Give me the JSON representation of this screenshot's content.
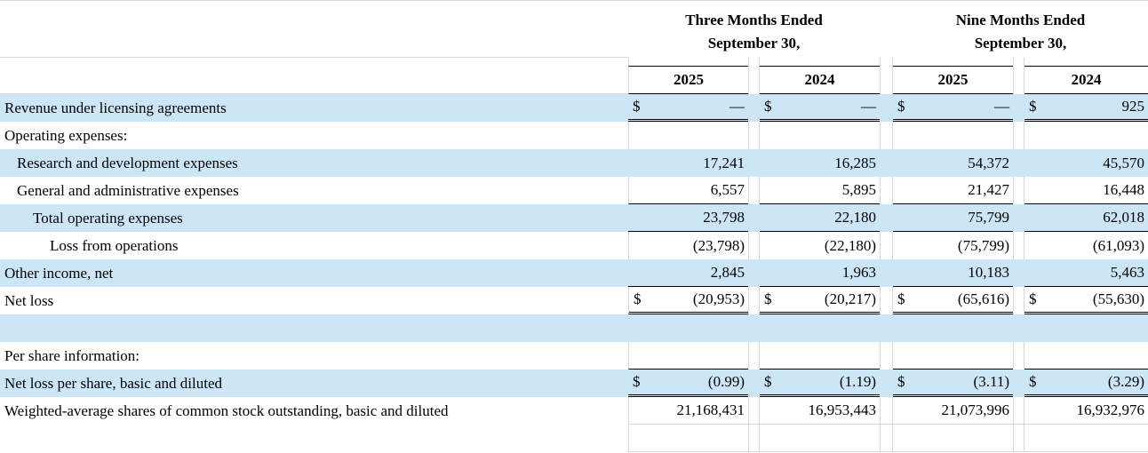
{
  "colors": {
    "stripe_blue": "#cce6f8",
    "gridline": "#d8d8d8",
    "rule_black": "#000000",
    "background": "#ffffff",
    "text": "#000000"
  },
  "table": {
    "currency_symbol": "$",
    "column_groups": [
      {
        "line1": "Three Months Ended",
        "line2": "September 30,",
        "years": [
          "2025",
          "2024"
        ]
      },
      {
        "line1": "Nine Months Ended",
        "line2": "September 30,",
        "years": [
          "2025",
          "2024"
        ]
      }
    ],
    "rows": [
      {
        "label": "Revenue under licensing agreements",
        "indent": 0,
        "bg": "blue",
        "dollar": true,
        "values": [
          "—",
          "—",
          "—",
          "925"
        ],
        "bottom_border": "double"
      },
      {
        "label": "Operating expenses:",
        "indent": 0,
        "bg": "white",
        "dollar": false,
        "values": null,
        "bottom_border": "none"
      },
      {
        "label": "Research and development expenses",
        "indent": 1,
        "bg": "blue",
        "dollar": false,
        "values": [
          "17,241",
          "16,285",
          "54,372",
          "45,570"
        ],
        "bottom_border": "none"
      },
      {
        "label": "General and administrative expenses",
        "indent": 1,
        "bg": "white",
        "dollar": false,
        "values": [
          "6,557",
          "5,895",
          "21,427",
          "16,448"
        ],
        "bottom_border": "single"
      },
      {
        "label": "Total operating expenses",
        "indent": 2,
        "bg": "blue",
        "dollar": false,
        "values": [
          "23,798",
          "22,180",
          "75,799",
          "62,018"
        ],
        "bottom_border": "single"
      },
      {
        "label": "Loss from operations",
        "indent": 3,
        "bg": "white",
        "dollar": false,
        "values": [
          "(23,798)",
          "(22,180)",
          "(75,799)",
          "(61,093)"
        ],
        "bottom_border": "none"
      },
      {
        "label": "Other income, net",
        "indent": 0,
        "bg": "blue",
        "dollar": false,
        "values": [
          "2,845",
          "1,963",
          "10,183",
          "5,463"
        ],
        "bottom_border": "single"
      },
      {
        "label": "Net loss",
        "indent": 0,
        "bg": "white",
        "dollar": true,
        "values": [
          "(20,953)",
          "(20,217)",
          "(65,616)",
          "(55,630)"
        ],
        "bottom_border": "double"
      },
      {
        "label": "",
        "indent": 0,
        "bg": "blue",
        "dollar": false,
        "values": null,
        "bottom_border": "none"
      },
      {
        "label": "Per share information:",
        "indent": 0,
        "bg": "white",
        "dollar": false,
        "values": null,
        "bottom_border": "single"
      },
      {
        "label": "Net loss per share, basic and diluted",
        "indent": 0,
        "bg": "blue",
        "dollar": true,
        "values": [
          "(0.99)",
          "(1.19)",
          "(3.11)",
          "(3.29)"
        ],
        "bottom_border": "double"
      },
      {
        "label": "Weighted-average shares of common stock outstanding, basic and diluted",
        "indent": 0,
        "bg": "white",
        "dollar": false,
        "values": [
          "21,168,431",
          "16,953,443",
          "21,073,996",
          "16,932,976"
        ],
        "bottom_border": "gray"
      },
      {
        "label": "",
        "indent": 0,
        "bg": "white",
        "dollar": false,
        "values": null,
        "bottom_border": "gray"
      }
    ]
  }
}
